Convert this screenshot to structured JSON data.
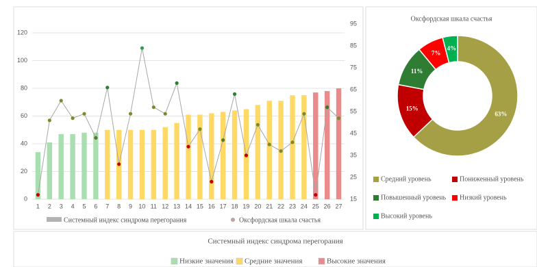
{
  "chart_data": [
    {
      "type": "combo",
      "categories": [
        "1",
        "2",
        "3",
        "4",
        "5",
        "6",
        "7",
        "8",
        "9",
        "10",
        "11",
        "12",
        "13",
        "14",
        "15",
        "16",
        "17",
        "18",
        "19",
        "20",
        "21",
        "22",
        "23",
        "24",
        "25",
        "26",
        "27"
      ],
      "series": [
        {
          "name": "Системный индекс синдрома перегорания",
          "type": "bar",
          "color": "#b3b3b3",
          "colors": [
            "#a9dfb0",
            "#a9dfb0",
            "#a9dfb0",
            "#a9dfb0",
            "#a9dfb0",
            "#a9dfb0",
            "#ffd966",
            "#ffd966",
            "#ffd966",
            "#ffd966",
            "#ffd966",
            "#ffd966",
            "#ffd966",
            "#ffd966",
            "#ffd966",
            "#ffd966",
            "#ffd966",
            "#ffd966",
            "#ffd966",
            "#ffd966",
            "#ffd966",
            "#ffd966",
            "#ffd966",
            "#ffd966",
            "#ea8a8a",
            "#ea8a8a",
            "#ea8a8a"
          ],
          "values": [
            34,
            41,
            47,
            47,
            48,
            48,
            50,
            50,
            50,
            50,
            50,
            52,
            55,
            61,
            61,
            62,
            63,
            64,
            65,
            68,
            71,
            71,
            75,
            75,
            77,
            78,
            80
          ]
        },
        {
          "name": "Оксфордская шкала счастья",
          "type": "line",
          "axis": "y2",
          "color": "#a6a6a6",
          "marker_colors": [
            "#c00000",
            "#7a8a2e",
            "#7a8a2e",
            "#7a8a2e",
            "#7a8a2e",
            "#5a7a2e",
            "#2e7d32",
            "#c00000",
            "#7a8a2e",
            "#2e9d52",
            "#7a8a2e",
            "#7a8a2e",
            "#2e7d32",
            "#c00000",
            "#7a8a2e",
            "#c00000",
            "#5a7a2e",
            "#2e7d32",
            "#c00000",
            "#7a8a2e",
            "#7a8a2e",
            "#7a8a2e",
            "#7a8a2e",
            "#7a8a2e",
            "#c00000",
            "#2e7d32",
            "#7a8a2e"
          ],
          "values": [
            17,
            51,
            60,
            52,
            54,
            43,
            66,
            31,
            54,
            84,
            57,
            54,
            68,
            39,
            47,
            23,
            42,
            63,
            35,
            49,
            40,
            37,
            41,
            54,
            17,
            57,
            52
          ]
        }
      ],
      "ylim": [
        0,
        120
      ],
      "yticks": [
        0,
        20,
        40,
        60,
        80,
        100,
        120
      ],
      "y2lim": [
        15,
        95
      ],
      "y2ticks": [
        15,
        25,
        35,
        45,
        55,
        65,
        75,
        85,
        95
      ],
      "grid": true
    },
    {
      "type": "donut",
      "title": "Оксфордская шкала счастья",
      "categories": [
        "Средний уровень",
        "Пониженный уровень",
        "Повышенный уровень",
        "Низкий уровень",
        "Высокий уровень"
      ],
      "values": [
        63,
        15,
        11,
        7,
        4
      ],
      "value_labels": [
        "63%",
        "15%",
        "11%",
        "7%",
        "4%"
      ],
      "colors": [
        "#a5a046",
        "#c00000",
        "#2e7d32",
        "#ff0000",
        "#00b050"
      ]
    }
  ],
  "bottom_panel": {
    "title": "Системный индекс синдрома перегорания",
    "legend": [
      {
        "name": "Низкие значения",
        "color": "#a9dfb0"
      },
      {
        "name": "Средние значения",
        "color": "#ffd966"
      },
      {
        "name": "Высокие значения",
        "color": "#ea8a8a"
      }
    ]
  }
}
